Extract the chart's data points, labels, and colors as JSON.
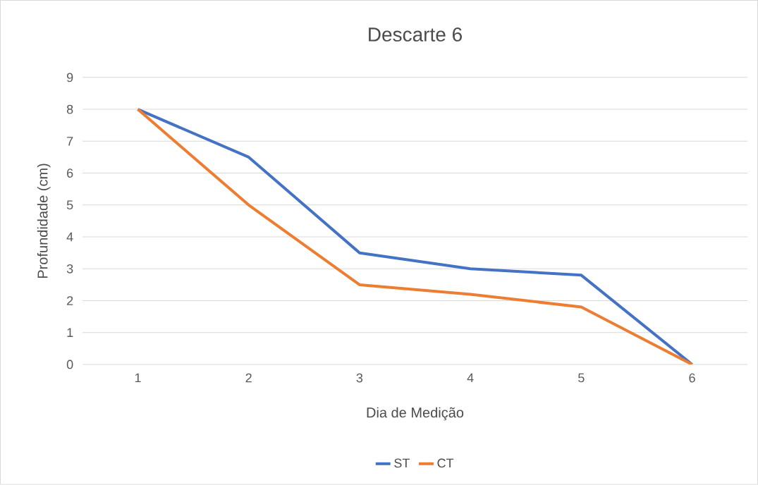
{
  "chart_data": {
    "type": "line",
    "title": "Descarte 6",
    "xlabel": "Dia de Medição",
    "ylabel": "Profundidade (cm)",
    "categories": [
      "1",
      "2",
      "3",
      "4",
      "5",
      "6"
    ],
    "series": [
      {
        "name": "ST",
        "color": "#4472c4",
        "values": [
          8,
          6.5,
          3.5,
          3,
          2.8,
          0
        ]
      },
      {
        "name": "CT",
        "color": "#ed7d31",
        "values": [
          8,
          5,
          2.5,
          2.2,
          1.8,
          0
        ]
      }
    ],
    "ylim": [
      0,
      9
    ],
    "yticks": [
      0,
      1,
      2,
      3,
      4,
      5,
      6,
      7,
      8,
      9
    ],
    "grid": "y",
    "legend": "bottom"
  }
}
